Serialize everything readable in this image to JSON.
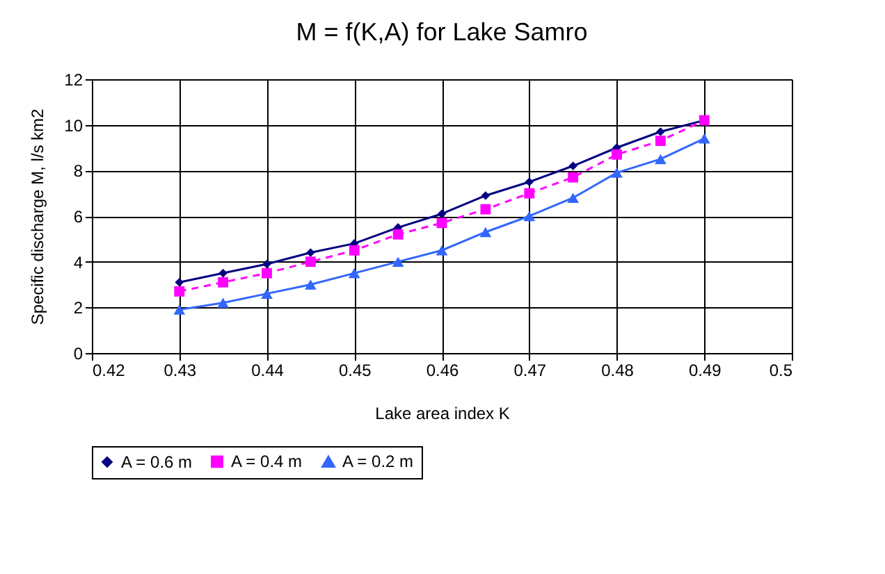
{
  "chart_data": {
    "type": "line",
    "title": "M = f(K,A) for Lake Samro",
    "xlabel": "Lake area index K",
    "ylabel": "Specific discharge M, l/s km2",
    "x": [
      0.43,
      0.435,
      0.44,
      0.445,
      0.45,
      0.455,
      0.46,
      0.465,
      0.47,
      0.475,
      0.48,
      0.485,
      0.49
    ],
    "series": [
      {
        "name": "A = 0.6 m",
        "color": "#000080",
        "marker": "diamond",
        "line_style": "solid",
        "values": [
          3.1,
          3.5,
          3.9,
          4.4,
          4.8,
          5.5,
          6.1,
          6.9,
          7.5,
          8.2,
          9.0,
          9.7,
          10.2
        ]
      },
      {
        "name": "A = 0.4 m",
        "color": "#ff00ff",
        "marker": "square",
        "line_style": "dashed",
        "values": [
          2.7,
          3.1,
          3.5,
          4.0,
          4.5,
          5.2,
          5.7,
          6.3,
          7.0,
          7.7,
          8.7,
          9.3,
          10.2
        ]
      },
      {
        "name": "A = 0.2 m",
        "color": "#3366ff",
        "marker": "triangle",
        "line_style": "solid",
        "values": [
          1.9,
          2.2,
          2.6,
          3.0,
          3.5,
          4.0,
          4.5,
          5.3,
          6.0,
          6.8,
          7.9,
          8.5,
          9.4
        ]
      }
    ],
    "xlim": [
      0.42,
      0.5
    ],
    "xticks": [
      0.42,
      0.43,
      0.44,
      0.45,
      0.46,
      0.47,
      0.48,
      0.49,
      0.5
    ],
    "ylim": [
      0,
      12
    ],
    "yticks": [
      0,
      2,
      4,
      6,
      8,
      10,
      12
    ],
    "grid": true,
    "legend": "bottom"
  }
}
